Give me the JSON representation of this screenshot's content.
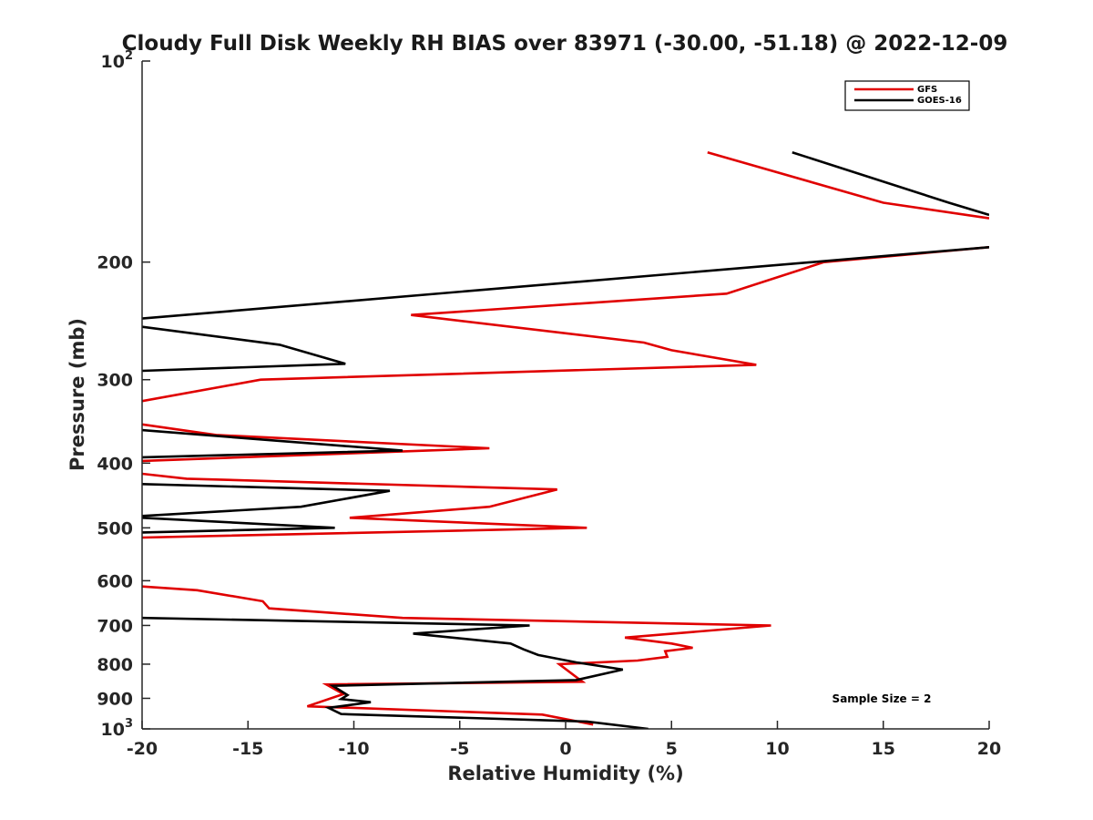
{
  "chart_data": {
    "type": "line",
    "title": "Cloudy Full Disk Weekly RH BIAS over 83971 (-30.00, -51.18) @ 2022-12-09",
    "xlabel": "Relative Humidity (%)",
    "ylabel": "Pressure (mb)",
    "xlim": [
      -20,
      20
    ],
    "ylim": [
      100,
      1000
    ],
    "y_scale": "log",
    "y_reversed": true,
    "grid": false,
    "legend_position": "top-right",
    "x_ticks": [
      "-20",
      "-15",
      "-10",
      "-5",
      "0",
      "5",
      "10",
      "15",
      "20"
    ],
    "y_ticks": [
      {
        "value": 100,
        "base": "10",
        "exp": "2"
      },
      {
        "value": 200,
        "label": "200"
      },
      {
        "value": 300,
        "label": "300"
      },
      {
        "value": 400,
        "label": "400"
      },
      {
        "value": 500,
        "label": "500"
      },
      {
        "value": 600,
        "label": "600"
      },
      {
        "value": 700,
        "label": "700"
      },
      {
        "value": 800,
        "label": "800"
      },
      {
        "value": 900,
        "label": "900"
      },
      {
        "value": 1000,
        "base": "10",
        "exp": "3"
      }
    ],
    "annotation": "Sample Size = 2",
    "series": [
      {
        "name": "GFS",
        "color": "#e00000",
        "segments": [
          [
            [
              6.7,
              137
            ],
            [
              15,
              163
            ],
            [
              20,
              172
            ]
          ],
          [
            [
              20,
              190
            ],
            [
              12.2,
              200
            ],
            [
              7.6,
              223
            ],
            [
              -7.3,
              240
            ],
            [
              3.7,
              264
            ],
            [
              5,
              271
            ],
            [
              9,
              285
            ],
            [
              -14.4,
              300
            ],
            [
              -20,
              323
            ]
          ],
          [
            [
              -20,
              350
            ],
            [
              -16.5,
              363
            ],
            [
              -3.6,
              380
            ],
            [
              -20,
              397
            ]
          ],
          [
            [
              -20,
              415
            ],
            [
              -17.9,
              422
            ],
            [
              -0.4,
              438
            ],
            [
              -3.6,
              465
            ],
            [
              -10.2,
              483
            ],
            [
              1,
              500
            ],
            [
              -20,
              517
            ]
          ],
          [
            [
              -20,
              612
            ],
            [
              -17.4,
              620
            ],
            [
              -14.3,
              644
            ],
            [
              -14,
              660
            ],
            [
              -7.7,
              682
            ],
            [
              9.7,
              700
            ],
            [
              2.8,
              730
            ],
            [
              5,
              745
            ],
            [
              6,
              756
            ],
            [
              4.7,
              765
            ],
            [
              4.8,
              780
            ],
            [
              3.4,
              790
            ],
            [
              -0.3,
              800
            ],
            [
              0.8,
              850
            ],
            [
              -11.3,
              858
            ],
            [
              -10.5,
              887
            ],
            [
              -12.2,
              925
            ],
            [
              -1.1,
              952
            ],
            [
              1.3,
              985
            ]
          ]
        ]
      },
      {
        "name": "GOES-16",
        "color": "#000000",
        "segments": [
          [
            [
              10.7,
              137
            ],
            [
              18.1,
              163
            ],
            [
              20,
              170
            ]
          ],
          [
            [
              20,
              190
            ],
            [
              -20,
              243
            ]
          ],
          [
            [
              -20,
              250
            ],
            [
              -13.5,
              266
            ],
            [
              -10.4,
              284
            ],
            [
              -20,
              291
            ]
          ],
          [
            [
              -20,
              357
            ],
            [
              -7.7,
              383
            ],
            [
              -20,
              392
            ]
          ],
          [
            [
              -20,
              430
            ],
            [
              -8.3,
              440
            ],
            [
              -12.5,
              465
            ],
            [
              -20,
              480
            ]
          ],
          [
            [
              -20,
              483
            ],
            [
              -10.9,
              500
            ],
            [
              -20,
              508
            ]
          ],
          [
            [
              -20,
              682
            ],
            [
              -1.7,
              700
            ],
            [
              -7.2,
              720
            ],
            [
              -2.6,
              745
            ],
            [
              -2,
              760
            ],
            [
              -1.3,
              775
            ],
            [
              0.5,
              795
            ],
            [
              2.7,
              815
            ],
            [
              0.5,
              845
            ],
            [
              -11,
              862
            ],
            [
              -10.3,
              890
            ],
            [
              -10.6,
              902
            ],
            [
              -9.2,
              912
            ],
            [
              -11.2,
              930
            ],
            [
              -10.6,
              950
            ],
            [
              1,
              975
            ],
            [
              3.9,
              1000
            ]
          ]
        ]
      }
    ]
  }
}
